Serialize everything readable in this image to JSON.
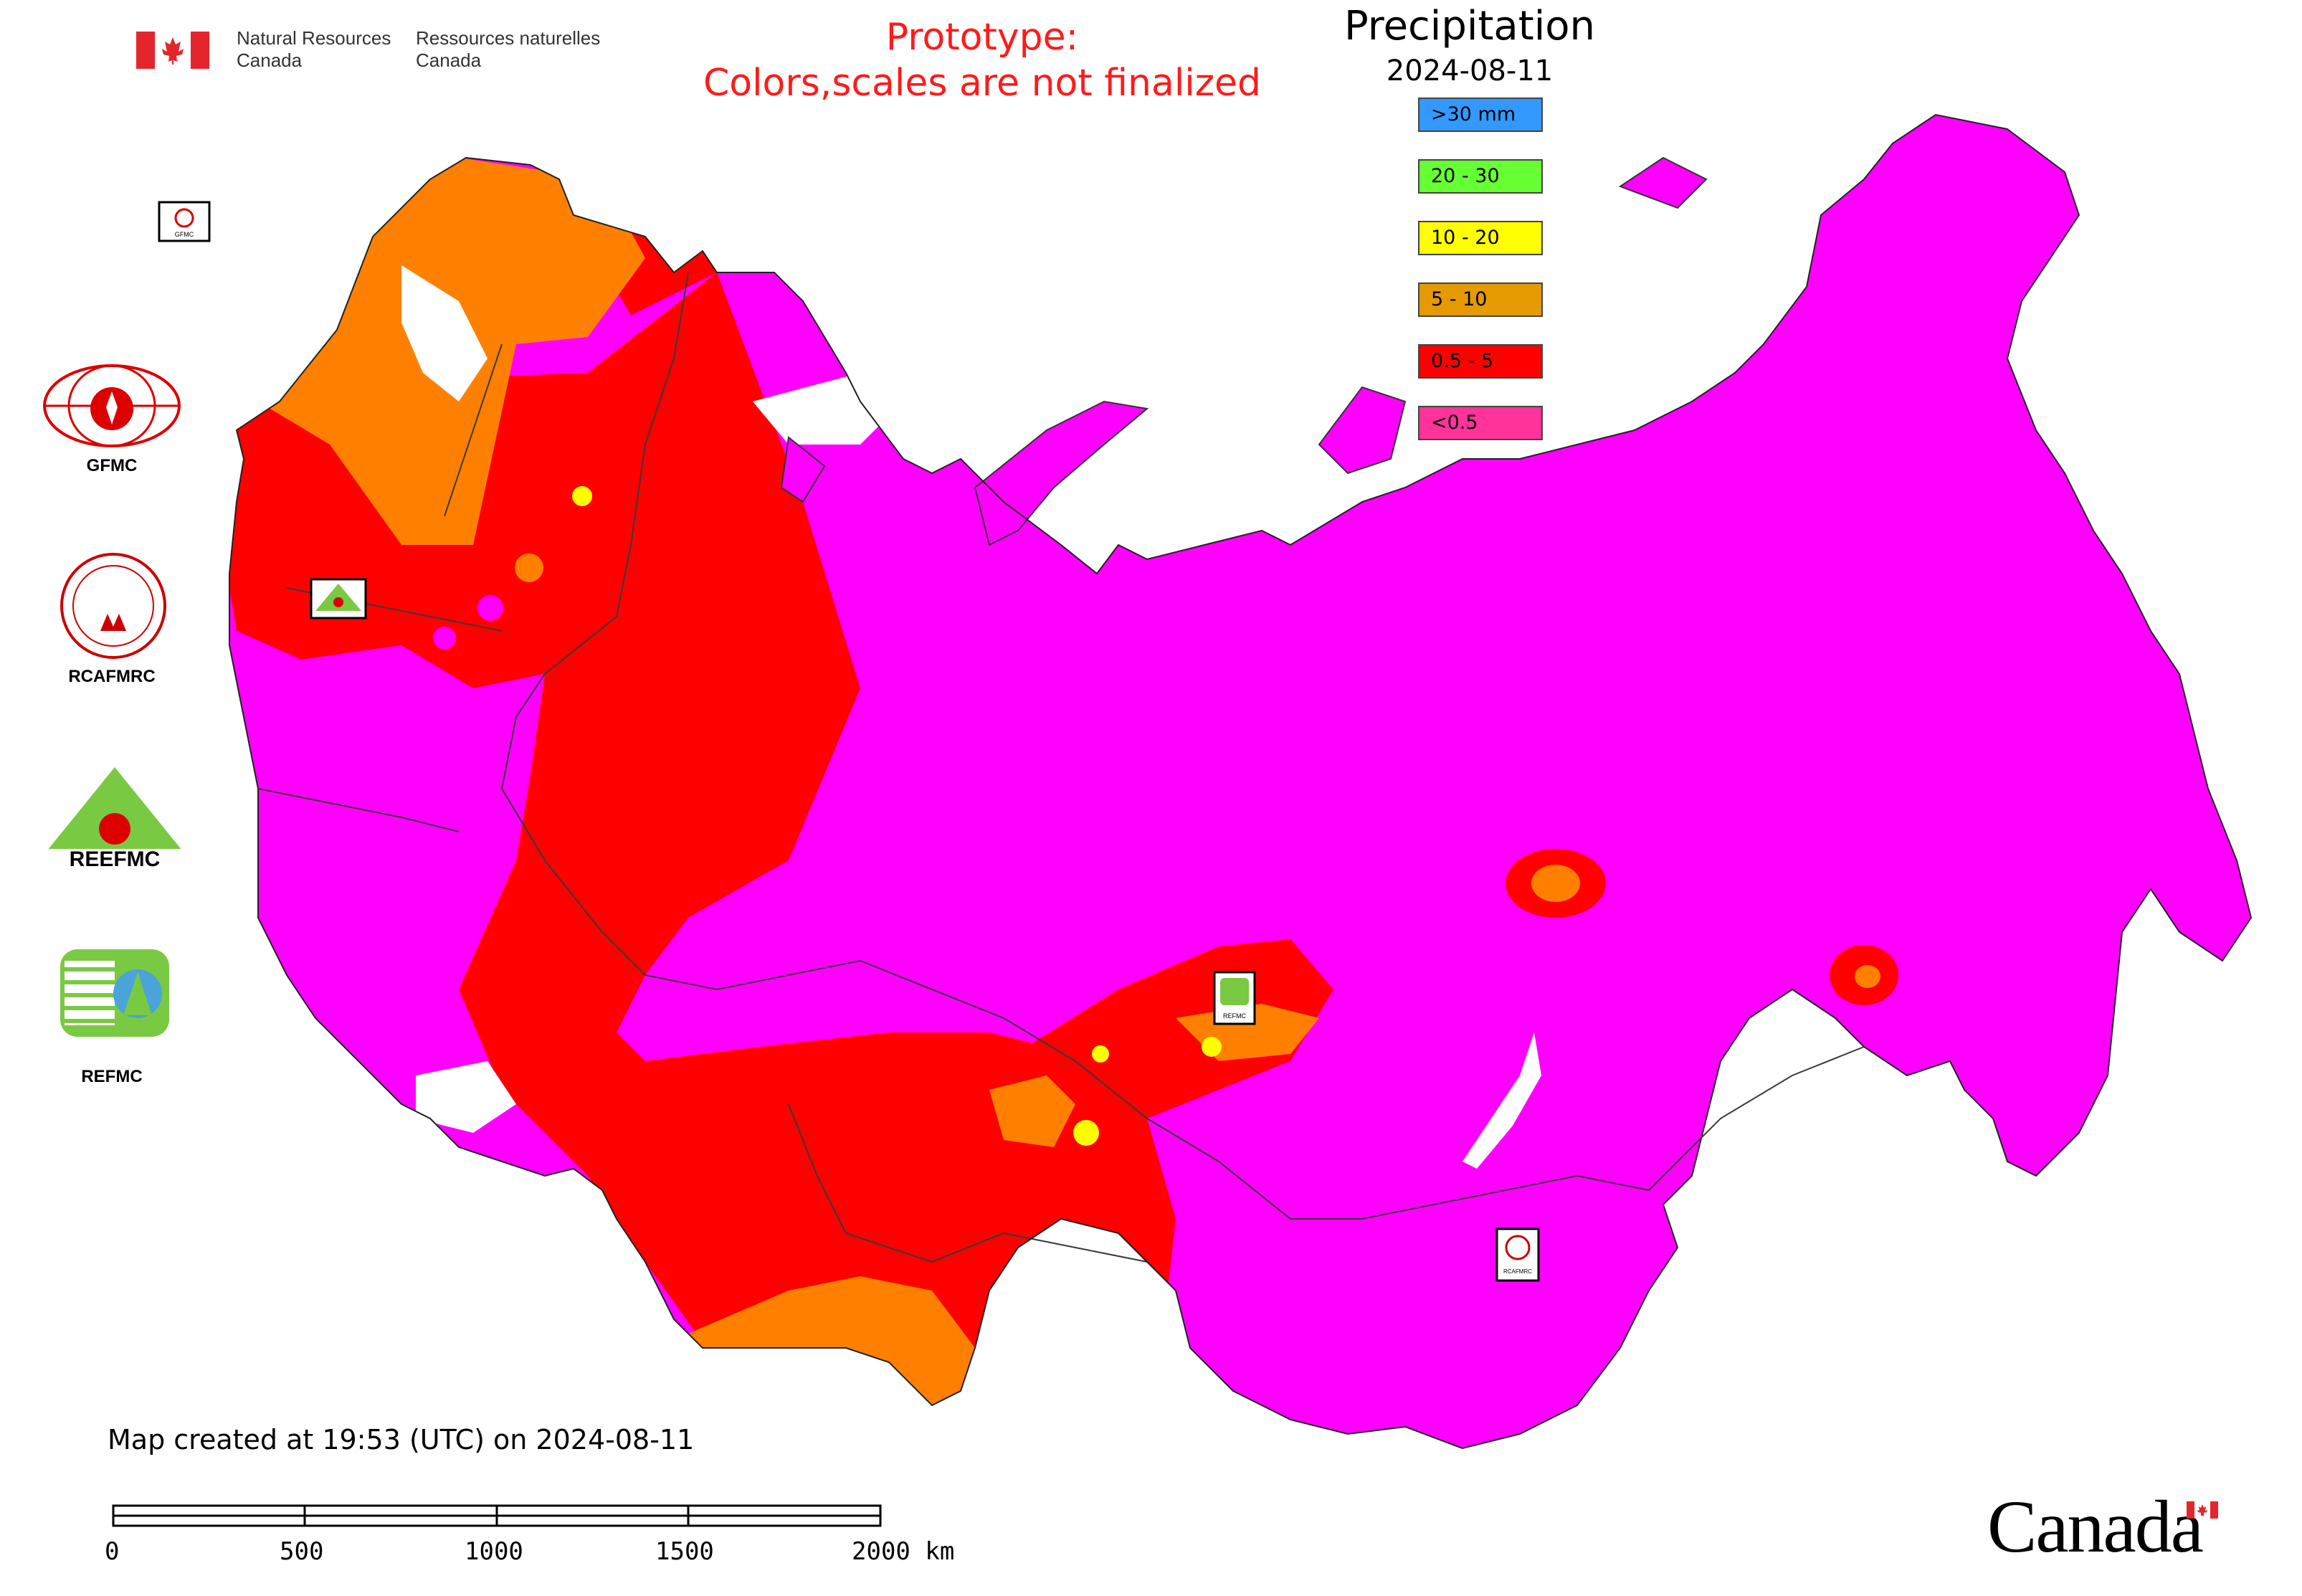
{
  "branding": {
    "org_en": [
      "Natural Resources",
      "Canada"
    ],
    "org_fr": [
      "Ressources naturelles",
      "Canada"
    ],
    "wordmark": "Canada",
    "flag_red": "#e4262c"
  },
  "notice": [
    "Prototype:",
    "Colors,scales are not finalized"
  ],
  "legend": {
    "title": "Precipitation",
    "date": "2024-08-11",
    "items": [
      {
        "label": ">30 mm",
        "color": "#3399ff"
      },
      {
        "label": "20 - 30",
        "color": "#66ff33"
      },
      {
        "label": "10 - 20",
        "color": "#ffff00"
      },
      {
        "label": "5 - 10",
        "color": "#e59a00"
      },
      {
        "label": "0.5 - 5",
        "color": "#ff0000"
      },
      {
        "label": "<0.5",
        "color": "#ff3399"
      }
    ]
  },
  "side_logos": [
    {
      "label": "GFMC"
    },
    {
      "label": "RCAFMRC"
    },
    {
      "label": "REEFMC"
    },
    {
      "label": "REFMC"
    }
  ],
  "map_markers": [
    {
      "label": "GFMC"
    },
    {
      "label": "REEFMC"
    },
    {
      "label": "REFMC"
    },
    {
      "label": "RCAFMRC"
    }
  ],
  "map_colors": {
    "below_0_5": "#ff00ff",
    "range_0_5_5": "#ff0000",
    "range_5_10": "#ff8000",
    "range_10_20": "#ffff00",
    "water": "#ffffff"
  },
  "footer": {
    "created": "Map created at 19:53 (UTC) on 2024-08-11",
    "scale_labels": [
      "0",
      "500",
      "1000",
      "1500",
      "2000 km"
    ]
  }
}
